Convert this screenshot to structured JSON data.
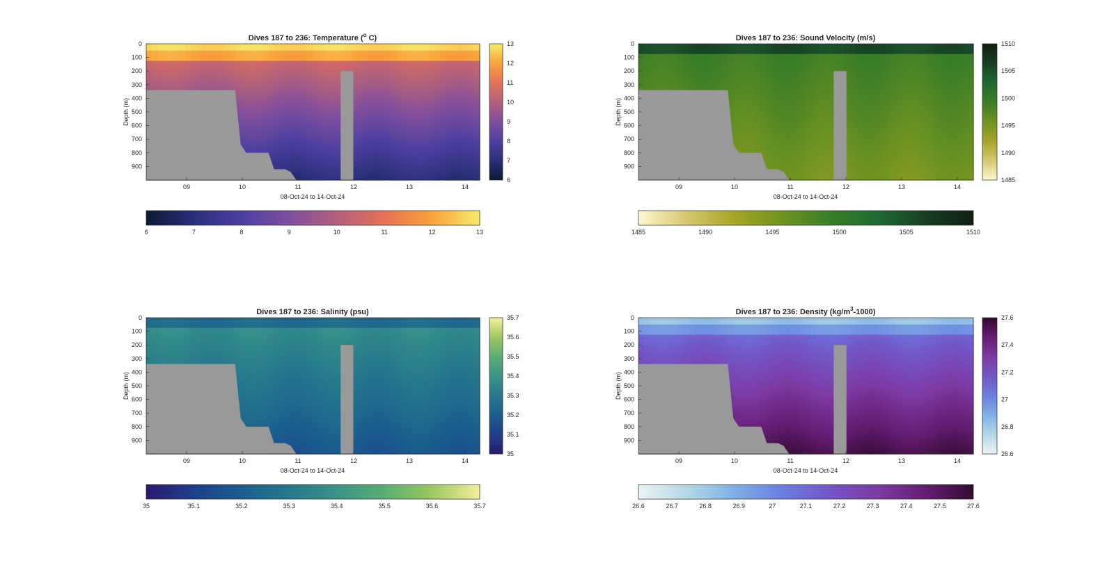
{
  "figure": {
    "background": "#ffffff",
    "land_color": "#999999",
    "grid": false
  },
  "chart_data": [
    {
      "type": "heatmap",
      "variable": "temperature",
      "title": "Dives 187 to 236: Temperature (",
      "title_sup": "o",
      "title_tail": " C)",
      "xlabel": "08-Oct-24 to 14-Oct-24",
      "ylabel": "Depth (m)",
      "x_tick_labels": [
        "09",
        "10",
        "11",
        "12",
        "13",
        "14"
      ],
      "y_tick_labels": [
        "0",
        "100",
        "200",
        "300",
        "400",
        "500",
        "600",
        "700",
        "800",
        "900"
      ],
      "ylim": [
        0,
        1000
      ],
      "colorbar_ticks": [
        "6",
        "7",
        "8",
        "9",
        "10",
        "11",
        "12",
        "13"
      ],
      "hcolorbar_ticks": [
        "6",
        "7",
        "8",
        "9",
        "10",
        "11",
        "12",
        "13"
      ],
      "clim": [
        6,
        13
      ],
      "colormap": [
        "#0b1a33",
        "#2a2f7a",
        "#4d3fa0",
        "#7e4e9e",
        "#b2607c",
        "#e47257",
        "#f9a33b",
        "#f5ec6a"
      ]
    },
    {
      "type": "heatmap",
      "variable": "sound_velocity",
      "title": "Dives 187 to 236: Sound Velocity (m/s)",
      "title_sup": "",
      "title_tail": "",
      "xlabel": "08-Oct-24 to 14-Oct-24",
      "ylabel": "Depth (m)",
      "x_tick_labels": [
        "09",
        "10",
        "11",
        "12",
        "13",
        "14"
      ],
      "y_tick_labels": [
        "0",
        "100",
        "200",
        "300",
        "400",
        "500",
        "600",
        "700",
        "800",
        "900"
      ],
      "ylim": [
        0,
        1000
      ],
      "colorbar_ticks": [
        "1485",
        "1490",
        "1495",
        "1500",
        "1505",
        "1510"
      ],
      "hcolorbar_ticks": [
        "1485",
        "1490",
        "1495",
        "1500",
        "1505",
        "1510"
      ],
      "clim": [
        1485,
        1510
      ],
      "colormap": [
        "#fdf8d2",
        "#d6c770",
        "#a6a527",
        "#6f9321",
        "#3a7e27",
        "#1f6a33",
        "#173f23",
        "#0f1e12"
      ]
    },
    {
      "type": "heatmap",
      "variable": "salinity",
      "title": "Dives 187 to 236: Salinity (psu)",
      "title_sup": "",
      "title_tail": "",
      "xlabel": "08-Oct-24 to 14-Oct-24",
      "ylabel": "Depth (m)",
      "x_tick_labels": [
        "09",
        "10",
        "11",
        "12",
        "13",
        "14"
      ],
      "y_tick_labels": [
        "0",
        "100",
        "200",
        "300",
        "400",
        "500",
        "600",
        "700",
        "800",
        "900"
      ],
      "ylim": [
        0,
        1000
      ],
      "colorbar_ticks": [
        "35",
        "35.1",
        "35.2",
        "35.3",
        "35.4",
        "35.5",
        "35.6",
        "35.7"
      ],
      "hcolorbar_ticks": [
        "35",
        "35.1",
        "35.2",
        "35.3",
        "35.4",
        "35.5",
        "35.6",
        "35.7"
      ],
      "clim": [
        35,
        35.7
      ],
      "colormap": [
        "#2a1a6e",
        "#1d3f8c",
        "#1a5f8e",
        "#25798c",
        "#3a9388",
        "#59ae74",
        "#9cc85f",
        "#f6ef9b"
      ]
    },
    {
      "type": "heatmap",
      "variable": "density",
      "title": "Dives 187 to 236: Density (kg/m",
      "title_sup": "3",
      "title_tail": "-1000)",
      "xlabel": "08-Oct-24 to 14-Oct-24",
      "ylabel": "Depth (m)",
      "x_tick_labels": [
        "09",
        "10",
        "11",
        "12",
        "13",
        "14"
      ],
      "y_tick_labels": [
        "0",
        "100",
        "200",
        "300",
        "400",
        "500",
        "600",
        "700",
        "800",
        "900"
      ],
      "ylim": [
        0,
        1000
      ],
      "colorbar_ticks": [
        "26.6",
        "26.8",
        "27",
        "27.2",
        "27.4",
        "27.6"
      ],
      "hcolorbar_ticks": [
        "26.6",
        "26.7",
        "26.8",
        "26.9",
        "27",
        "27.1",
        "27.2",
        "27.3",
        "27.4",
        "27.5",
        "27.6"
      ],
      "clim": [
        26.6,
        27.6
      ],
      "colormap": [
        "#eaf3f4",
        "#b4d8e6",
        "#7fb0e6",
        "#6a7fe0",
        "#7456c6",
        "#7c3aa3",
        "#651d73",
        "#320b30"
      ]
    }
  ]
}
